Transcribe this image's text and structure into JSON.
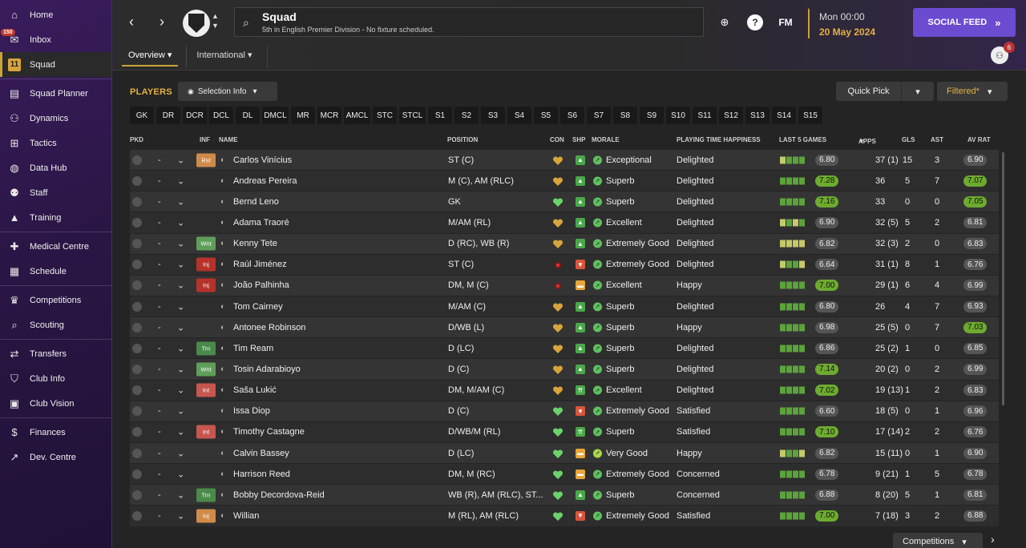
{
  "sidebar": {
    "items": [
      {
        "label": "Home",
        "icon": "home-icon",
        "glyph": "⌂"
      },
      {
        "label": "Inbox",
        "icon": "inbox-icon",
        "glyph": "✉",
        "badge": "150"
      },
      {
        "label": "Squad",
        "icon": "squad-shirt-icon",
        "glyph": "11",
        "active": true
      },
      {
        "label": "Squad Planner",
        "icon": "clipboard-icon",
        "glyph": "▤"
      },
      {
        "label": "Dynamics",
        "icon": "dynamics-icon",
        "glyph": "⚇"
      },
      {
        "label": "Tactics",
        "icon": "tactics-board-icon",
        "glyph": "⊞"
      },
      {
        "label": "Data Hub",
        "icon": "data-hub-icon",
        "glyph": "◍"
      },
      {
        "label": "Staff",
        "icon": "staff-icon",
        "glyph": "⚉"
      },
      {
        "label": "Training",
        "icon": "training-cone-icon",
        "glyph": "▲"
      },
      {
        "label": "Medical Centre",
        "icon": "medical-kit-icon",
        "glyph": "✚"
      },
      {
        "label": "Schedule",
        "icon": "calendar-icon",
        "glyph": "▦"
      },
      {
        "label": "Competitions",
        "icon": "trophy-icon",
        "glyph": "♛"
      },
      {
        "label": "Scouting",
        "icon": "magnifier-icon",
        "glyph": "⌕"
      },
      {
        "label": "Transfers",
        "icon": "transfers-icon",
        "glyph": "⇄"
      },
      {
        "label": "Club Info",
        "icon": "shield-icon",
        "glyph": "⛉"
      },
      {
        "label": "Club Vision",
        "icon": "briefcase-icon",
        "glyph": "▣"
      },
      {
        "label": "Finances",
        "icon": "money-icon",
        "glyph": "$"
      },
      {
        "label": "Dev. Centre",
        "icon": "dev-centre-icon",
        "glyph": "↗"
      }
    ]
  },
  "topbar": {
    "title": "Squad",
    "subtitle": "5th in English Premier Division - No fixture scheduled.",
    "time": "Mon 00:00",
    "date": "20 May 2024",
    "social_feed": "SOCIAL FEED",
    "fm_logo": "FM",
    "people_badge": "6",
    "tabs": [
      "Overview",
      "International"
    ]
  },
  "players": {
    "title": "PLAYERS",
    "selection_info": "Selection Info",
    "quick_pick": "Quick Pick",
    "filtered": "Filtered*",
    "positions": [
      "GK",
      "DR",
      "DCR",
      "DCL",
      "DL",
      "DMCL",
      "MR",
      "MCR",
      "AMCL",
      "STC",
      "STCL",
      "S1",
      "S2",
      "S3",
      "S4",
      "S5",
      "S6",
      "S7",
      "S8",
      "S9",
      "S10",
      "S11",
      "S12",
      "S13",
      "S14",
      "S15"
    ],
    "bottom_button": "Competitions"
  },
  "table": {
    "headers": {
      "pkd": "PKD",
      "inf": "INF",
      "name": "NAME",
      "position": "POSITION",
      "con": "CON",
      "shp": "SHP",
      "morale": "MORALE",
      "pth": "PLAYING TIME HAPPINESS",
      "last5": "LAST 5 GAMES",
      "apps": "APPS",
      "gls": "GLS",
      "ast": "AST",
      "avrat": "AV RAT"
    },
    "rows": [
      {
        "inf": "Rst",
        "inf_class": "inf-rst",
        "name": "Carlos Vinícius",
        "position": "ST (C)",
        "con": "heart-gold",
        "shp": "up",
        "morale_icon": "up-green",
        "morale": "Exceptional",
        "pth": "Delighted",
        "form": "lggg",
        "last5": "6.80",
        "last5_hi": false,
        "apps": "37 (1)",
        "gls": "15",
        "ast": "3",
        "avrat": "6.90",
        "avrat_hi": false
      },
      {
        "inf": "",
        "inf_class": "",
        "name": "Andreas Pereira",
        "position": "M (C), AM (RLC)",
        "con": "heart-gold",
        "shp": "up",
        "morale_icon": "up-green",
        "morale": "Superb",
        "pth": "Delighted",
        "form": "gggg",
        "last5": "7.28",
        "last5_hi": true,
        "apps": "36",
        "gls": "5",
        "ast": "7",
        "avrat": "7.07",
        "avrat_hi": true
      },
      {
        "inf": "",
        "inf_class": "",
        "name": "Bernd Leno",
        "position": "GK",
        "con": "heart-green",
        "shp": "up",
        "morale_icon": "up-green",
        "morale": "Superb",
        "pth": "Delighted",
        "form": "gggg",
        "last5": "7.16",
        "last5_hi": true,
        "apps": "33",
        "gls": "0",
        "ast": "0",
        "avrat": "7.05",
        "avrat_hi": true
      },
      {
        "inf": "",
        "inf_class": "",
        "name": "Adama Traoré",
        "position": "M/AM (RL)",
        "con": "heart-gold",
        "shp": "up",
        "morale_icon": "up-green",
        "morale": "Excellent",
        "pth": "Delighted",
        "form": "lglg",
        "last5": "6.90",
        "last5_hi": false,
        "apps": "32 (5)",
        "gls": "5",
        "ast": "2",
        "avrat": "6.81",
        "avrat_hi": false
      },
      {
        "inf": "Wnt",
        "inf_class": "inf-wnt",
        "name": "Kenny Tete",
        "position": "D (RC), WB (R)",
        "con": "heart-gold",
        "shp": "up",
        "morale_icon": "up-green",
        "morale": "Extremely Good",
        "pth": "Delighted",
        "form": "llll",
        "last5": "6.82",
        "last5_hi": false,
        "apps": "32 (3)",
        "gls": "2",
        "ast": "0",
        "avrat": "6.83",
        "avrat_hi": false
      },
      {
        "inf": "Inj",
        "inf_class": "inf-inj",
        "name": "Raúl Jiménez",
        "position": "ST (C)",
        "con": "injury",
        "shp": "down",
        "morale_icon": "up-green",
        "morale": "Extremely Good",
        "pth": "Delighted",
        "form": "lggl",
        "last5": "6.64",
        "last5_hi": false,
        "apps": "31 (1)",
        "gls": "8",
        "ast": "1",
        "avrat": "6.76",
        "avrat_hi": false
      },
      {
        "inf": "Inj",
        "inf_class": "inf-inj",
        "name": "João Palhinha",
        "position": "DM, M (C)",
        "con": "injury",
        "shp": "mid",
        "morale_icon": "up-green",
        "morale": "Excellent",
        "pth": "Happy",
        "form": "gggg",
        "last5": "7.00",
        "last5_hi": true,
        "apps": "29 (1)",
        "gls": "6",
        "ast": "4",
        "avrat": "6.99",
        "avrat_hi": false
      },
      {
        "inf": "",
        "inf_class": "",
        "name": "Tom Cairney",
        "position": "M/AM (C)",
        "con": "heart-gold",
        "shp": "up",
        "morale_icon": "up-green",
        "morale": "Superb",
        "pth": "Delighted",
        "form": "gggg",
        "last5": "6.80",
        "last5_hi": false,
        "apps": "26",
        "gls": "4",
        "ast": "7",
        "avrat": "6.93",
        "avrat_hi": false
      },
      {
        "inf": "",
        "inf_class": "",
        "name": "Antonee Robinson",
        "position": "D/WB (L)",
        "con": "heart-gold",
        "shp": "up",
        "morale_icon": "up-green",
        "morale": "Superb",
        "pth": "Happy",
        "form": "gggg",
        "last5": "6.98",
        "last5_hi": false,
        "apps": "25 (5)",
        "gls": "0",
        "ast": "7",
        "avrat": "7.03",
        "avrat_hi": true
      },
      {
        "inf": "Trn",
        "inf_class": "inf-trn",
        "name": "Tim Ream",
        "position": "D (LC)",
        "con": "heart-gold",
        "shp": "up",
        "morale_icon": "up-green",
        "morale": "Superb",
        "pth": "Delighted",
        "form": "gggg",
        "last5": "6.86",
        "last5_hi": false,
        "apps": "25 (2)",
        "gls": "1",
        "ast": "0",
        "avrat": "6.85",
        "avrat_hi": false
      },
      {
        "inf": "Wnt",
        "inf_class": "inf-wnt",
        "name": "Tosin Adarabioyo",
        "position": "D (C)",
        "con": "heart-gold",
        "shp": "up",
        "morale_icon": "up-green",
        "morale": "Superb",
        "pth": "Delighted",
        "form": "gggg",
        "last5": "7.14",
        "last5_hi": true,
        "apps": "20 (2)",
        "gls": "0",
        "ast": "2",
        "avrat": "6.99",
        "avrat_hi": false
      },
      {
        "inf": "Int",
        "inf_class": "inf-int",
        "name": "Saša Lukić",
        "position": "DM, M/AM (C)",
        "con": "heart-gold",
        "shp": "upup",
        "morale_icon": "up-green",
        "morale": "Excellent",
        "pth": "Delighted",
        "form": "gggg",
        "last5": "7.02",
        "last5_hi": true,
        "apps": "19 (13)",
        "gls": "1",
        "ast": "2",
        "avrat": "6.83",
        "avrat_hi": false
      },
      {
        "inf": "",
        "inf_class": "",
        "name": "Issa Diop",
        "position": "D (C)",
        "con": "heart-green",
        "shp": "down",
        "morale_icon": "up-green",
        "morale": "Extremely Good",
        "pth": "Satisfied",
        "form": "gggg",
        "last5": "6.60",
        "last5_hi": false,
        "apps": "18 (5)",
        "gls": "0",
        "ast": "1",
        "avrat": "6.96",
        "avrat_hi": false
      },
      {
        "inf": "Int",
        "inf_class": "inf-int",
        "name": "Timothy Castagne",
        "position": "D/WB/M (RL)",
        "con": "heart-green",
        "shp": "upup",
        "morale_icon": "up-green",
        "morale": "Superb",
        "pth": "Satisfied",
        "form": "gggg",
        "last5": "7.10",
        "last5_hi": true,
        "apps": "17 (14)",
        "gls": "2",
        "ast": "2",
        "avrat": "6.76",
        "avrat_hi": false
      },
      {
        "inf": "",
        "inf_class": "",
        "name": "Calvin Bassey",
        "position": "D (LC)",
        "con": "heart-green",
        "shp": "mid",
        "morale_icon": "up-lime",
        "morale": "Very Good",
        "pth": "Happy",
        "form": "lggl",
        "last5": "6.82",
        "last5_hi": false,
        "apps": "15 (11)",
        "gls": "0",
        "ast": "1",
        "avrat": "6.90",
        "avrat_hi": false
      },
      {
        "inf": "",
        "inf_class": "",
        "name": "Harrison Reed",
        "position": "DM, M (RC)",
        "con": "heart-green",
        "shp": "mid",
        "morale_icon": "up-green",
        "morale": "Extremely Good",
        "pth": "Concerned",
        "form": "gggg",
        "last5": "6.78",
        "last5_hi": false,
        "apps": "9 (21)",
        "gls": "1",
        "ast": "5",
        "avrat": "6.78",
        "avrat_hi": false
      },
      {
        "inf": "Trn",
        "inf_class": "inf-trn",
        "name": "Bobby Decordova-Reid",
        "position": "WB (R), AM (RLC), ST...",
        "con": "heart-green",
        "shp": "up",
        "morale_icon": "up-green",
        "morale": "Superb",
        "pth": "Concerned",
        "form": "gggg",
        "last5": "6.88",
        "last5_hi": false,
        "apps": "8 (20)",
        "gls": "5",
        "ast": "1",
        "avrat": "6.81",
        "avrat_hi": false
      },
      {
        "inf": "Inj",
        "inf_class": "inf-rst",
        "name": "Willian",
        "position": "M (RL), AM (RLC)",
        "con": "heart-green",
        "shp": "down",
        "morale_icon": "up-green",
        "morale": "Extremely Good",
        "pth": "Satisfied",
        "form": "gggg",
        "last5": "7.00",
        "last5_hi": true,
        "apps": "7 (18)",
        "gls": "3",
        "ast": "2",
        "avrat": "6.88",
        "avrat_hi": false
      }
    ]
  },
  "colors": {
    "accent_gold": "#e3b144",
    "social_purple": "#6b4bd0",
    "rating_green": "#6dab2f"
  }
}
